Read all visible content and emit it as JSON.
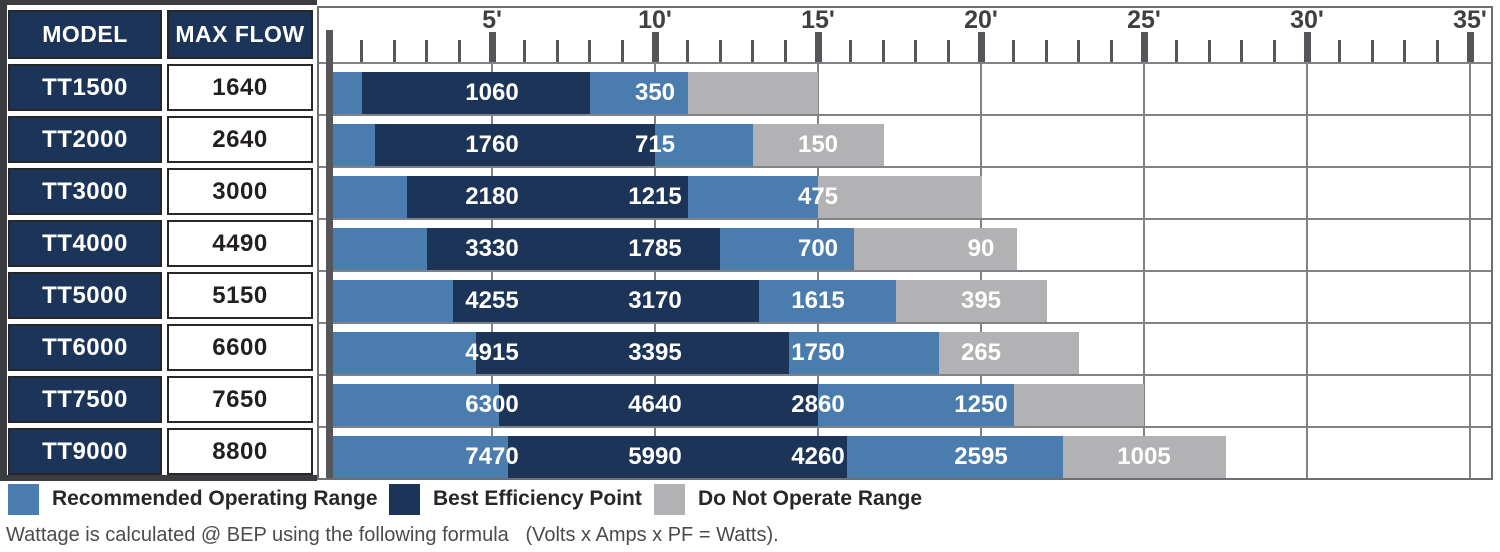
{
  "table": {
    "headers": {
      "model": "MODEL",
      "max_flow": "MAX FLOW"
    },
    "rows": [
      {
        "model": "TT1500",
        "max_flow": "1640"
      },
      {
        "model": "TT2000",
        "max_flow": "2640"
      },
      {
        "model": "TT3000",
        "max_flow": "3000"
      },
      {
        "model": "TT4000",
        "max_flow": "4490"
      },
      {
        "model": "TT5000",
        "max_flow": "5150"
      },
      {
        "model": "TT6000",
        "max_flow": "6600"
      },
      {
        "model": "TT7500",
        "max_flow": "7650"
      },
      {
        "model": "TT9000",
        "max_flow": "8800"
      }
    ]
  },
  "chart_data": {
    "type": "bar",
    "orientation": "horizontal-stacked",
    "title": "",
    "x_axis": {
      "unit": "feet of head",
      "major_ticks": [
        5,
        10,
        15,
        20,
        25,
        30,
        35
      ],
      "major_tick_labels": [
        "5'",
        "10'",
        "15'",
        "20'",
        "25'",
        "30'",
        "35'"
      ],
      "minor_tick_every_ft": 1,
      "range_ft": [
        0,
        35.5
      ],
      "grid": true
    },
    "colors": {
      "recommended": "#4a7dad",
      "bep": "#1b3457",
      "do_not_operate": "#b2b2b4"
    },
    "rows": [
      {
        "model": "TT1500",
        "max_flow": 1640,
        "shutoff_head_ft": 15,
        "segments": [
          {
            "range": "recommended",
            "from_ft": 0,
            "to_ft": 1.0
          },
          {
            "range": "bep",
            "from_ft": 1.0,
            "to_ft": 8.0
          },
          {
            "range": "recommended",
            "from_ft": 8.0,
            "to_ft": 11.0
          },
          {
            "range": "do_not_operate",
            "from_ft": 11.0,
            "to_ft": 15.0
          }
        ],
        "flow_labels": [
          {
            "head_ft": 5,
            "flow": "1060"
          },
          {
            "head_ft": 10,
            "flow": "350"
          }
        ]
      },
      {
        "model": "TT2000",
        "max_flow": 2640,
        "shutoff_head_ft": 17,
        "segments": [
          {
            "range": "recommended",
            "from_ft": 0,
            "to_ft": 1.4
          },
          {
            "range": "bep",
            "from_ft": 1.4,
            "to_ft": 10.0
          },
          {
            "range": "recommended",
            "from_ft": 10.0,
            "to_ft": 13.0
          },
          {
            "range": "do_not_operate",
            "from_ft": 13.0,
            "to_ft": 17.0
          }
        ],
        "flow_labels": [
          {
            "head_ft": 5,
            "flow": "1760"
          },
          {
            "head_ft": 10,
            "flow": "715"
          },
          {
            "head_ft": 15,
            "flow": "150"
          }
        ]
      },
      {
        "model": "TT3000",
        "max_flow": 3000,
        "shutoff_head_ft": 20,
        "segments": [
          {
            "range": "recommended",
            "from_ft": 0,
            "to_ft": 2.4
          },
          {
            "range": "bep",
            "from_ft": 2.4,
            "to_ft": 11.0
          },
          {
            "range": "recommended",
            "from_ft": 11.0,
            "to_ft": 15.0
          },
          {
            "range": "do_not_operate",
            "from_ft": 15.0,
            "to_ft": 20.0
          }
        ],
        "flow_labels": [
          {
            "head_ft": 5,
            "flow": "2180"
          },
          {
            "head_ft": 10,
            "flow": "1215"
          },
          {
            "head_ft": 15,
            "flow": "475"
          }
        ]
      },
      {
        "model": "TT4000",
        "max_flow": 4490,
        "shutoff_head_ft": 21,
        "segments": [
          {
            "range": "recommended",
            "from_ft": 0,
            "to_ft": 3.0
          },
          {
            "range": "bep",
            "from_ft": 3.0,
            "to_ft": 12.0
          },
          {
            "range": "recommended",
            "from_ft": 12.0,
            "to_ft": 16.1
          },
          {
            "range": "do_not_operate",
            "from_ft": 16.1,
            "to_ft": 21.1
          }
        ],
        "flow_labels": [
          {
            "head_ft": 5,
            "flow": "3330"
          },
          {
            "head_ft": 10,
            "flow": "1785"
          },
          {
            "head_ft": 15,
            "flow": "700"
          },
          {
            "head_ft": 20,
            "flow": "90"
          }
        ]
      },
      {
        "model": "TT5000",
        "max_flow": 5150,
        "shutoff_head_ft": 22,
        "segments": [
          {
            "range": "recommended",
            "from_ft": 0,
            "to_ft": 3.8
          },
          {
            "range": "bep",
            "from_ft": 3.8,
            "to_ft": 13.2
          },
          {
            "range": "recommended",
            "from_ft": 13.2,
            "to_ft": 17.4
          },
          {
            "range": "do_not_operate",
            "from_ft": 17.4,
            "to_ft": 22.0
          }
        ],
        "flow_labels": [
          {
            "head_ft": 5,
            "flow": "4255"
          },
          {
            "head_ft": 10,
            "flow": "3170"
          },
          {
            "head_ft": 15,
            "flow": "1615"
          },
          {
            "head_ft": 20,
            "flow": "395"
          }
        ]
      },
      {
        "model": "TT6000",
        "max_flow": 6600,
        "shutoff_head_ft": 23,
        "segments": [
          {
            "range": "recommended",
            "from_ft": 0,
            "to_ft": 4.5
          },
          {
            "range": "bep",
            "from_ft": 4.5,
            "to_ft": 14.1
          },
          {
            "range": "recommended",
            "from_ft": 14.1,
            "to_ft": 18.7
          },
          {
            "range": "do_not_operate",
            "from_ft": 18.7,
            "to_ft": 23.0
          }
        ],
        "flow_labels": [
          {
            "head_ft": 5,
            "flow": "4915"
          },
          {
            "head_ft": 10,
            "flow": "3395"
          },
          {
            "head_ft": 15,
            "flow": "1750"
          },
          {
            "head_ft": 20,
            "flow": "265"
          }
        ]
      },
      {
        "model": "TT7500",
        "max_flow": 7650,
        "shutoff_head_ft": 25,
        "segments": [
          {
            "range": "recommended",
            "from_ft": 0,
            "to_ft": 5.2
          },
          {
            "range": "bep",
            "from_ft": 5.2,
            "to_ft": 15.0
          },
          {
            "range": "recommended",
            "from_ft": 15.0,
            "to_ft": 21.0
          },
          {
            "range": "do_not_operate",
            "from_ft": 21.0,
            "to_ft": 25.0
          }
        ],
        "flow_labels": [
          {
            "head_ft": 5,
            "flow": "6300"
          },
          {
            "head_ft": 10,
            "flow": "4640"
          },
          {
            "head_ft": 15,
            "flow": "2860"
          },
          {
            "head_ft": 20,
            "flow": "1250"
          }
        ]
      },
      {
        "model": "TT9000",
        "max_flow": 8800,
        "shutoff_head_ft": 27.5,
        "segments": [
          {
            "range": "recommended",
            "from_ft": 0,
            "to_ft": 5.5
          },
          {
            "range": "bep",
            "from_ft": 5.5,
            "to_ft": 15.9
          },
          {
            "range": "recommended",
            "from_ft": 15.9,
            "to_ft": 22.5
          },
          {
            "range": "do_not_operate",
            "from_ft": 22.5,
            "to_ft": 27.5
          }
        ],
        "flow_labels": [
          {
            "head_ft": 5,
            "flow": "7470"
          },
          {
            "head_ft": 10,
            "flow": "5990"
          },
          {
            "head_ft": 15,
            "flow": "4260"
          },
          {
            "head_ft": 20,
            "flow": "2595"
          },
          {
            "head_ft": 25,
            "flow": "1005"
          }
        ]
      }
    ]
  },
  "legend": [
    {
      "key": "recommended",
      "label": "Recommended Operating Range"
    },
    {
      "key": "bep",
      "label": "Best Efficiency Point"
    },
    {
      "key": "do_not_operate",
      "label": "Do Not Operate Range"
    }
  ],
  "footer": "Wattage is calculated @ BEP using the following formula   (Volts x Amps x PF = Watts)."
}
